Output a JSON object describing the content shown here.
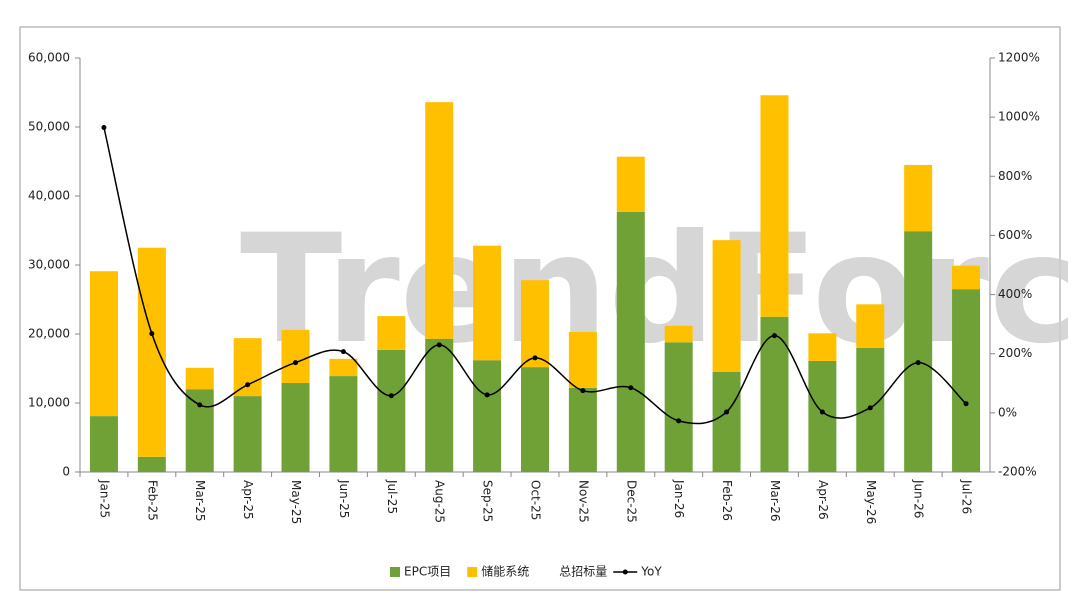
{
  "chart_data": {
    "type": "bar-line",
    "watermark": "TrendForce",
    "categories": [
      "Jan-25",
      "Feb-25",
      "Mar-25",
      "Apr-25",
      "May-25",
      "Jun-25",
      "Jul-25",
      "Aug-25",
      "Sep-25",
      "Oct-25",
      "Nov-25",
      "Dec-25",
      "Jan-26",
      "Feb-26",
      "Mar-26",
      "Apr-26",
      "May-26",
      "Jun-26",
      "Jul-26"
    ],
    "series": [
      {
        "name": "EPC项目",
        "color": "#6fa136",
        "values": [
          8100,
          2200,
          12000,
          11000,
          12900,
          13900,
          17700,
          19300,
          16200,
          15200,
          12200,
          37700,
          18800,
          14500,
          22500,
          16100,
          18000,
          34900,
          26500
        ]
      },
      {
        "name": "储能系统",
        "color": "#ffc000",
        "values": [
          21000,
          30300,
          3100,
          8400,
          7700,
          2500,
          4900,
          34300,
          16600,
          12600,
          8100,
          8000,
          2400,
          19100,
          32100,
          4000,
          6300,
          9600,
          3400
        ]
      },
      {
        "name": "YoY",
        "color": "#000000",
        "axis": "y2",
        "values": [
          965,
          268,
          27,
          95,
          170,
          207,
          58,
          230,
          61,
          186,
          75,
          85,
          -27,
          3,
          261,
          3,
          17,
          170,
          31
        ]
      }
    ],
    "total_legend": "总招标量",
    "ylim": [
      0,
      60000
    ],
    "yticks": [
      0,
      {
        "value": 10000,
        "label": "10,000"
      },
      {
        "value": 20000,
        "label": "20,000"
      },
      {
        "value": 30000,
        "label": "30,000"
      },
      {
        "value": 40000,
        "label": "40,000"
      },
      {
        "value": 50000,
        "label": "50,000"
      },
      {
        "value": 60000,
        "label": "60,000"
      }
    ],
    "y2lim": [
      -200,
      1200
    ],
    "y2ticks": [
      {
        "value": -200,
        "label": "-200%"
      },
      {
        "value": 0,
        "label": "0%"
      },
      {
        "value": 200,
        "label": "200%"
      },
      {
        "value": 400,
        "label": "400%"
      },
      {
        "value": 600,
        "label": "600%"
      },
      {
        "value": 800,
        "label": "800%"
      },
      {
        "value": 1000,
        "label": "1000%"
      },
      {
        "value": 1200,
        "label": "1200%"
      }
    ],
    "grid": false
  }
}
